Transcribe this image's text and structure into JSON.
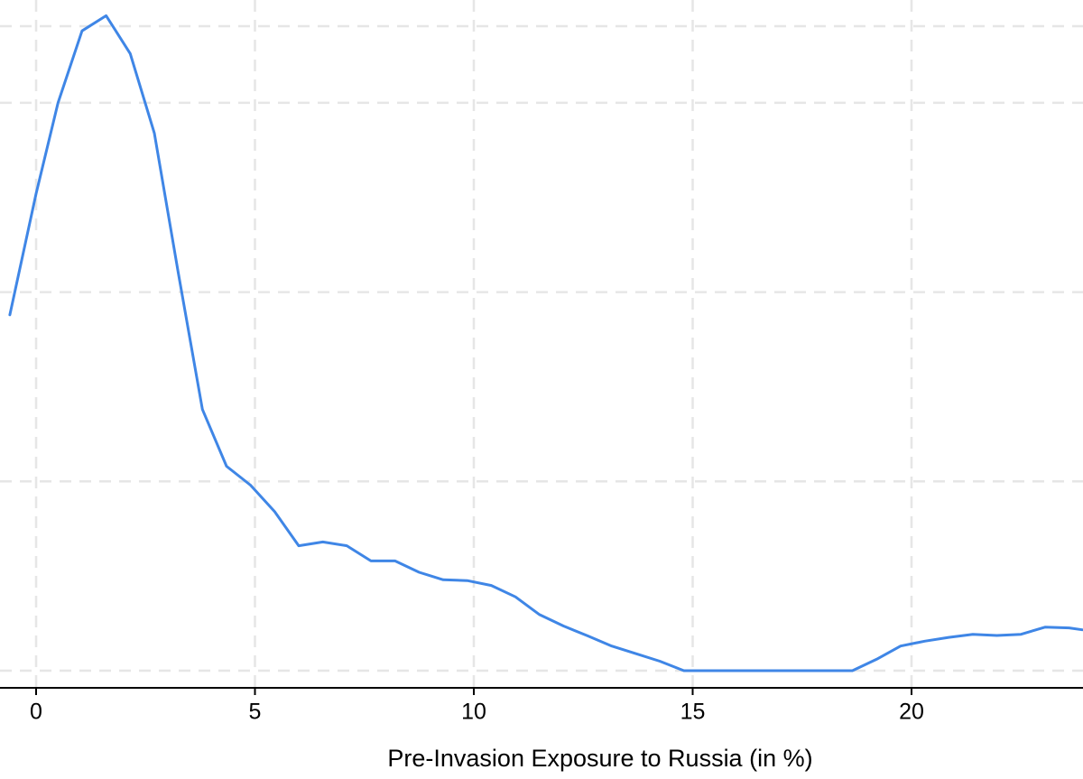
{
  "chart_data": {
    "type": "line",
    "xlabel": "Pre-Invasion Exposure to Russia (in %)",
    "ylabel": "",
    "xlim": [
      -0.6,
      23.9
    ],
    "ylim": [
      0,
      0.17
    ],
    "x_ticks": [
      0,
      5,
      10,
      15,
      20
    ],
    "x_tick_labels": [
      "0",
      "5",
      "10",
      "15",
      "20"
    ],
    "y_gridlines": [
      0,
      0.05,
      0.1,
      0.15
    ],
    "grid": true,
    "series": [
      {
        "color": "#3f86e6",
        "x": [
          -0.6,
          0.0,
          0.5,
          1.05,
          1.6,
          2.15,
          2.7,
          3.25,
          3.8,
          4.35,
          4.9,
          5.45,
          6.0,
          6.55,
          7.1,
          7.65,
          8.2,
          8.75,
          9.3,
          9.85,
          10.4,
          10.95,
          11.5,
          12.05,
          12.6,
          13.15,
          13.7,
          14.25,
          14.8,
          15.35,
          15.9,
          16.45,
          17.0,
          17.55,
          18.1,
          18.65,
          19.2,
          19.75,
          20.3,
          20.85,
          21.4,
          21.95,
          22.5,
          23.05,
          23.6,
          23.9
        ],
        "values": [
          0.094,
          0.126,
          0.15,
          0.169,
          0.173,
          0.163,
          0.142,
          0.105,
          0.069,
          0.054,
          0.049,
          0.042,
          0.033,
          0.034,
          0.033,
          0.029,
          0.029,
          0.026,
          0.024,
          0.0238,
          0.0225,
          0.0195,
          0.0148,
          0.0118,
          0.0092,
          0.0065,
          0.0045,
          0.0025,
          0.0,
          0.0,
          0.0,
          0.0,
          0.0,
          0.0,
          0.0,
          0.0,
          0.003,
          0.0065,
          0.0078,
          0.0088,
          0.0096,
          0.0093,
          0.0096,
          0.0115,
          0.0113,
          0.0108
        ]
      }
    ]
  }
}
